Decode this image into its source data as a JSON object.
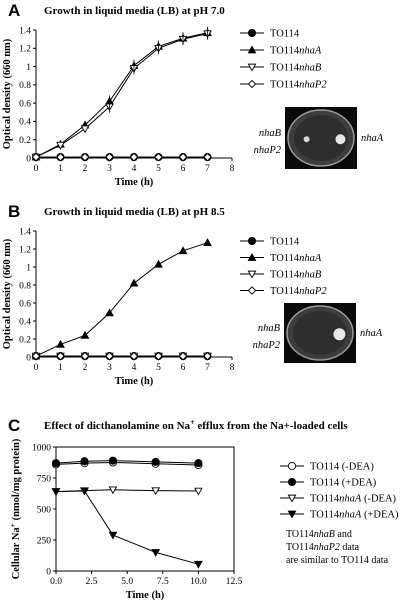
{
  "chart_data": [
    {
      "id": "A",
      "type": "line",
      "panel_letter": "A",
      "title": "Growth in liquid media (LB) at pH 7.0",
      "xlabel": "Time (h)",
      "ylabel": "Optical density (660 nm)",
      "xlim": [
        0,
        8
      ],
      "ylim": [
        0,
        1.4
      ],
      "xticks": [
        "0",
        "1",
        "2",
        "3",
        "4",
        "5",
        "6",
        "7",
        "8"
      ],
      "yticks": [
        "0",
        "0.2",
        "0.4",
        "0.6",
        "0.8",
        "1",
        "1.2",
        "1.4"
      ],
      "series": [
        {
          "name": "TO114",
          "name_main": "TO114",
          "name_gene": "",
          "marker": "filled-circle",
          "x": [
            0,
            1,
            2,
            3,
            4,
            5,
            6,
            7
          ],
          "y": [
            0.01,
            0.01,
            0.01,
            0.01,
            0.01,
            0.01,
            0.01,
            0.01
          ]
        },
        {
          "name": "TO114nhaA",
          "name_main": "TO114",
          "name_gene": "nhaA",
          "marker": "filled-triangle",
          "x": [
            0,
            1,
            2,
            3,
            4,
            5,
            6,
            7
          ],
          "y": [
            0.01,
            0.15,
            0.36,
            0.62,
            1.01,
            1.22,
            1.31,
            1.37
          ]
        },
        {
          "name": "TO114nhaB",
          "name_main": "TO114",
          "name_gene": "nhaB",
          "marker": "open-triangle-down",
          "x": [
            0,
            1,
            2,
            3,
            4,
            5,
            6,
            7
          ],
          "y": [
            0.01,
            0.14,
            0.32,
            0.56,
            0.98,
            1.2,
            1.3,
            1.36
          ]
        },
        {
          "name": "TO114nhaP2",
          "name_main": "TO114",
          "name_gene": "nhaP2",
          "marker": "open-diamond",
          "x": [
            0,
            1,
            2,
            3,
            4,
            5,
            6,
            7
          ],
          "y": [
            0.01,
            0.01,
            0.01,
            0.01,
            0.01,
            0.01,
            0.01,
            0.01
          ]
        }
      ],
      "plate": {
        "left_top": "nhaB",
        "left_bottom": "nhaP2",
        "right": "nhaA"
      }
    },
    {
      "id": "B",
      "type": "line",
      "panel_letter": "B",
      "title": "Growth in liquid media (LB) at pH 8.5",
      "xlabel": "Time (h)",
      "ylabel": "Optical density (660 nm)",
      "xlim": [
        0,
        8
      ],
      "ylim": [
        0,
        1.4
      ],
      "xticks": [
        "0",
        "1",
        "2",
        "3",
        "4",
        "5",
        "6",
        "7",
        "8"
      ],
      "yticks": [
        "0",
        "0.2",
        "0.4",
        "0.6",
        "0.8",
        "1",
        "1.2",
        "1.4"
      ],
      "series": [
        {
          "name": "TO114",
          "name_main": "TO114",
          "name_gene": "",
          "marker": "filled-circle",
          "x": [
            0,
            1,
            2,
            3,
            4,
            5,
            6,
            7
          ],
          "y": [
            0.01,
            0.01,
            0.01,
            0.01,
            0.01,
            0.01,
            0.01,
            0.01
          ]
        },
        {
          "name": "TO114nhaA",
          "name_main": "TO114",
          "name_gene": "nhaA",
          "marker": "filled-triangle",
          "x": [
            0,
            1,
            2,
            3,
            4,
            5,
            6,
            7
          ],
          "y": [
            0.01,
            0.14,
            0.24,
            0.49,
            0.82,
            1.03,
            1.18,
            1.27
          ]
        },
        {
          "name": "TO114nhaB",
          "name_main": "TO114",
          "name_gene": "nhaB",
          "marker": "open-triangle-down",
          "x": [
            0,
            1,
            2,
            3,
            4,
            5,
            6,
            7
          ],
          "y": [
            0.01,
            0.01,
            0.01,
            0.01,
            0.01,
            0.01,
            0.01,
            0.01
          ]
        },
        {
          "name": "TO114nhaP2",
          "name_main": "TO114",
          "name_gene": "nhaP2",
          "marker": "open-diamond",
          "x": [
            0,
            1,
            2,
            3,
            4,
            5,
            6,
            7
          ],
          "y": [
            0.01,
            0.01,
            0.01,
            0.01,
            0.01,
            0.01,
            0.01,
            0.01
          ]
        }
      ],
      "plate": {
        "left_top": "nhaB",
        "left_bottom": "nhaP2",
        "right": "nhaA"
      }
    },
    {
      "id": "C",
      "type": "line",
      "panel_letter": "C",
      "title_pre": "Effect of dicthanolamine on Na",
      "title_sup": "+",
      "title_post": " efflux from the Na+-loaded cells",
      "xlabel": "Time (h)",
      "ylabel_pre": "Cellular Na",
      "ylabel_sup": "+",
      "ylabel_post": "  (nmol/mg protein)",
      "xlim": [
        0,
        12.5
      ],
      "ylim": [
        0,
        1000
      ],
      "xticks": [
        "0.0",
        "2.5",
        "5.0",
        "7.5",
        "10.0",
        "12.5"
      ],
      "yticks": [
        "0",
        "250",
        "500",
        "750",
        "1000"
      ],
      "series": [
        {
          "name": "TO114 (-DEA)",
          "name_main": "TO114",
          "name_gene": "",
          "name_tail": " (-DEA)",
          "marker": "open-circle",
          "x": [
            0,
            2,
            4,
            7,
            10
          ],
          "y": [
            860,
            870,
            875,
            865,
            855
          ]
        },
        {
          "name": "TO114 (+DEA)",
          "name_main": "TO114",
          "name_gene": "",
          "name_tail": " (+DEA)",
          "marker": "filled-circle",
          "x": [
            0,
            2,
            4,
            7,
            10
          ],
          "y": [
            870,
            885,
            890,
            880,
            870
          ]
        },
        {
          "name": "TO114nhaA (-DEA)",
          "name_main": "TO114",
          "name_gene": "nhaA",
          "name_tail": " (-DEA)",
          "marker": "open-triangle-down",
          "x": [
            0,
            2,
            4,
            7,
            10
          ],
          "y": [
            640,
            648,
            655,
            648,
            645
          ]
        },
        {
          "name": "TO114nhaA (+DEA)",
          "name_main": "TO114",
          "name_gene": "nhaA",
          "name_tail": " (+DEA)",
          "marker": "filled-triangle-down",
          "x": [
            0,
            2,
            4,
            7,
            10
          ],
          "y": [
            640,
            645,
            290,
            150,
            55
          ]
        }
      ],
      "note_lines": [
        {
          "main": "TO114",
          "gene": "nhaB",
          "tail": " and"
        },
        {
          "main": "TO114",
          "gene": "nhaP2",
          "tail": " data"
        },
        {
          "main": "are similar to TO114 data",
          "gene": "",
          "tail": ""
        }
      ]
    }
  ]
}
